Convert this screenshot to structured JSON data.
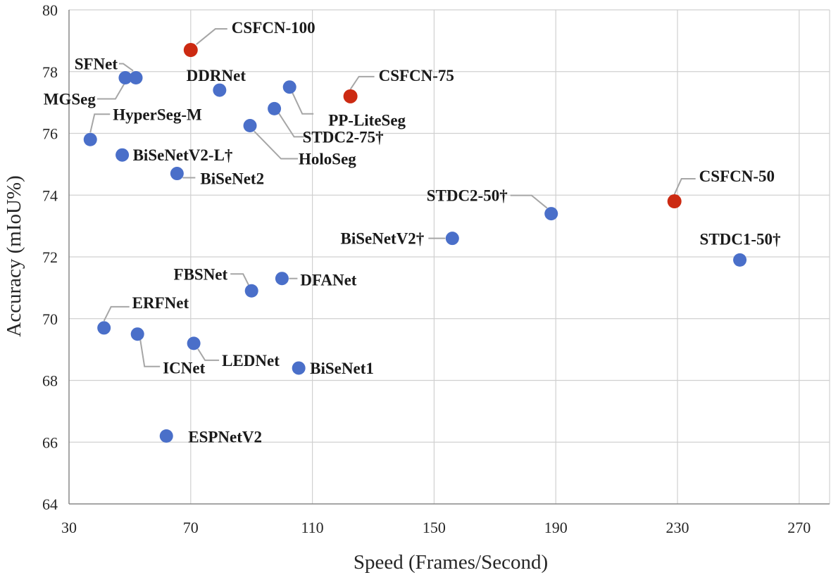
{
  "chart_data": {
    "type": "scatter",
    "xlabel": "Speed (Frames/Second)",
    "ylabel": "Accuracy (mIoU%)",
    "xlim": [
      30,
      280
    ],
    "ylim": [
      64,
      80
    ],
    "xticks": [
      30,
      70,
      110,
      150,
      190,
      230,
      270
    ],
    "yticks": [
      64,
      66,
      68,
      70,
      72,
      74,
      76,
      78,
      80
    ],
    "grid": true,
    "colors": {
      "highlight": "#cc2a12",
      "default": "#4a6fc9"
    },
    "points": [
      {
        "label": "CSFCN-100",
        "x": 70,
        "y": 78.7,
        "highlight": true
      },
      {
        "label": "CSFCN-75",
        "x": 122.5,
        "y": 77.2,
        "highlight": true
      },
      {
        "label": "CSFCN-50",
        "x": 229,
        "y": 73.8,
        "highlight": true
      },
      {
        "label": "SFNet",
        "x": 52,
        "y": 77.8,
        "highlight": false
      },
      {
        "label": "MGSeg",
        "x": 48.5,
        "y": 77.8,
        "highlight": false
      },
      {
        "label": "DDRNet",
        "x": 79.5,
        "y": 77.4,
        "highlight": false
      },
      {
        "label": "PP-LiteSeg",
        "x": 102.5,
        "y": 77.5,
        "highlight": false
      },
      {
        "label": "STDC2-75†",
        "x": 97.5,
        "y": 76.8,
        "highlight": false
      },
      {
        "label": "HoloSeg",
        "x": 89.5,
        "y": 76.25,
        "highlight": false
      },
      {
        "label": "HyperSeg-M",
        "x": 37,
        "y": 75.8,
        "highlight": false
      },
      {
        "label": "BiSeNetV2-L†",
        "x": 47.5,
        "y": 75.3,
        "highlight": false
      },
      {
        "label": "BiSeNet2",
        "x": 65.5,
        "y": 74.7,
        "highlight": false
      },
      {
        "label": "STDC2-50†",
        "x": 188.5,
        "y": 73.4,
        "highlight": false
      },
      {
        "label": "BiSeNetV2†",
        "x": 156,
        "y": 72.6,
        "highlight": false
      },
      {
        "label": "STDC1-50†",
        "x": 250.5,
        "y": 71.9,
        "highlight": false
      },
      {
        "label": "FBSNet",
        "x": 90,
        "y": 70.9,
        "highlight": false
      },
      {
        "label": "DFANet",
        "x": 100,
        "y": 71.3,
        "highlight": false
      },
      {
        "label": "ERFNet",
        "x": 41.5,
        "y": 69.7,
        "highlight": false
      },
      {
        "label": "ICNet",
        "x": 52.5,
        "y": 69.5,
        "highlight": false
      },
      {
        "label": "LEDNet",
        "x": 71,
        "y": 69.2,
        "highlight": false
      },
      {
        "label": "BiSeNet1",
        "x": 105.5,
        "y": 68.4,
        "highlight": false
      },
      {
        "label": "ESPNetV2",
        "x": 62,
        "y": 66.2,
        "highlight": false
      }
    ]
  }
}
